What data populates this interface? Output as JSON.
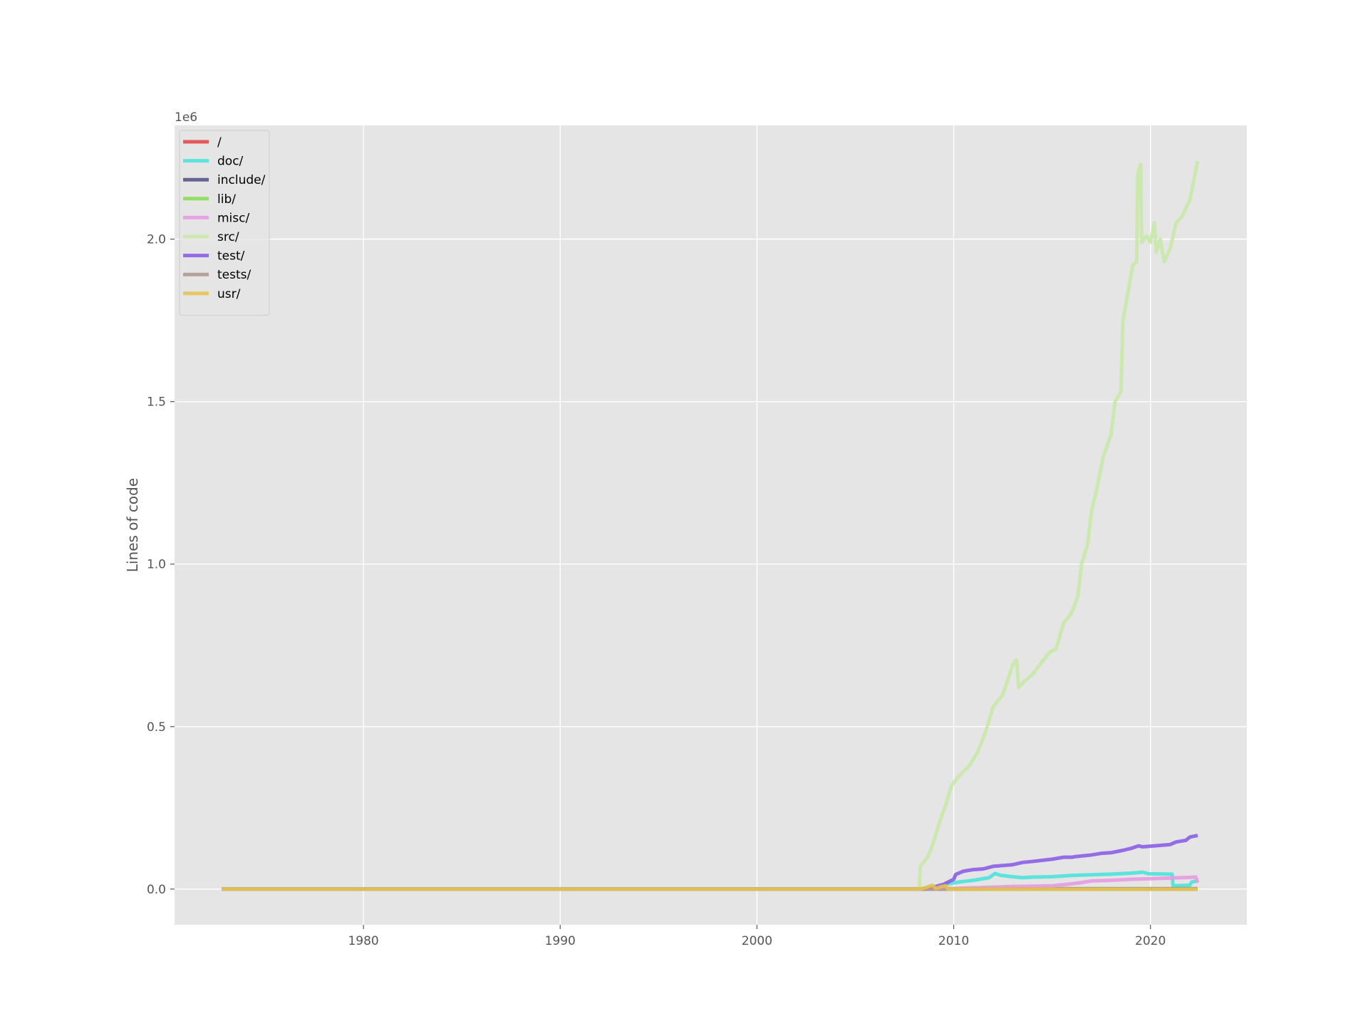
{
  "chart_data": {
    "type": "line",
    "title": "",
    "xlabel": "",
    "ylabel": "Lines of code",
    "y_offset_text": "1e6",
    "xlim": [
      1970.4,
      2024.9
    ],
    "ylim": [
      -110000,
      2350000
    ],
    "xticks": [
      1980,
      1990,
      2000,
      2010,
      2020
    ],
    "yticks": [
      0,
      500000,
      1000000,
      1500000,
      2000000
    ],
    "ytick_labels": [
      "0.0",
      "0.5",
      "1.0",
      "1.5",
      "2.0"
    ],
    "grid": true,
    "background": "#e5e5e5",
    "legend_position": "upper-left",
    "series": [
      {
        "name": "/",
        "color": "#e24a4a",
        "points": [
          [
            1972.8,
            0
          ],
          [
            2022.4,
            0
          ]
        ]
      },
      {
        "name": "doc/",
        "color": "#4ee2dc",
        "points": [
          [
            1972.8,
            0
          ],
          [
            2009.5,
            0
          ],
          [
            2009.6,
            15000
          ],
          [
            2010.3,
            22000
          ],
          [
            2011.0,
            27000
          ],
          [
            2011.8,
            35000
          ],
          [
            2012.1,
            48000
          ],
          [
            2012.4,
            42000
          ],
          [
            2013.0,
            38000
          ],
          [
            2013.5,
            35000
          ],
          [
            2014.0,
            37000
          ],
          [
            2015.0,
            38000
          ],
          [
            2016.0,
            42000
          ],
          [
            2017.0,
            44000
          ],
          [
            2018.0,
            46000
          ],
          [
            2019.0,
            49000
          ],
          [
            2019.6,
            52000
          ],
          [
            2019.9,
            47000
          ],
          [
            2021.1,
            46000
          ],
          [
            2021.15,
            10000
          ],
          [
            2022.0,
            12000
          ],
          [
            2022.1,
            22000
          ],
          [
            2022.4,
            25000
          ]
        ]
      },
      {
        "name": "include/",
        "color": "#555588",
        "points": [
          [
            1972.8,
            0
          ],
          [
            2008.2,
            0
          ],
          [
            2009.0,
            2000
          ],
          [
            2009.3,
            1000
          ],
          [
            2022.4,
            1000
          ]
        ]
      },
      {
        "name": "lib/",
        "color": "#88dd55",
        "points": [
          [
            1972.8,
            0
          ],
          [
            2022.4,
            0
          ]
        ]
      },
      {
        "name": "misc/",
        "color": "#e59be2",
        "points": [
          [
            1972.8,
            0
          ],
          [
            2009.6,
            0
          ],
          [
            2010.5,
            3000
          ],
          [
            2012.0,
            6000
          ],
          [
            2013.0,
            8000
          ],
          [
            2014.0,
            9000
          ],
          [
            2015.0,
            10000
          ],
          [
            2015.8,
            15000
          ],
          [
            2016.5,
            20000
          ],
          [
            2017.0,
            25000
          ],
          [
            2018.0,
            27000
          ],
          [
            2019.0,
            30000
          ],
          [
            2020.0,
            32000
          ],
          [
            2021.0,
            34000
          ],
          [
            2022.0,
            36000
          ],
          [
            2022.3,
            37000
          ],
          [
            2022.4,
            20000
          ]
        ]
      },
      {
        "name": "src/",
        "color": "#c8e8a8",
        "points": [
          [
            1972.8,
            0
          ],
          [
            2008.1,
            0
          ],
          [
            2008.25,
            5000
          ],
          [
            2008.3,
            70000
          ],
          [
            2008.7,
            100000
          ],
          [
            2009.0,
            150000
          ],
          [
            2009.3,
            210000
          ],
          [
            2009.6,
            260000
          ],
          [
            2009.9,
            320000
          ],
          [
            2010.3,
            350000
          ],
          [
            2010.8,
            380000
          ],
          [
            2011.2,
            420000
          ],
          [
            2011.6,
            480000
          ],
          [
            2012.0,
            560000
          ],
          [
            2012.5,
            600000
          ],
          [
            2013.0,
            690000
          ],
          [
            2013.2,
            705000
          ],
          [
            2013.3,
            620000
          ],
          [
            2013.6,
            640000
          ],
          [
            2014.0,
            660000
          ],
          [
            2014.5,
            700000
          ],
          [
            2014.9,
            730000
          ],
          [
            2015.2,
            740000
          ],
          [
            2015.6,
            820000
          ],
          [
            2016.0,
            850000
          ],
          [
            2016.3,
            900000
          ],
          [
            2016.5,
            1000000
          ],
          [
            2016.8,
            1060000
          ],
          [
            2017.0,
            1160000
          ],
          [
            2017.3,
            1240000
          ],
          [
            2017.6,
            1330000
          ],
          [
            2018.0,
            1400000
          ],
          [
            2018.2,
            1500000
          ],
          [
            2018.5,
            1530000
          ],
          [
            2018.6,
            1750000
          ],
          [
            2018.9,
            1850000
          ],
          [
            2019.1,
            1920000
          ],
          [
            2019.3,
            1930000
          ],
          [
            2019.35,
            2200000
          ],
          [
            2019.5,
            2230000
          ],
          [
            2019.55,
            1990000
          ],
          [
            2019.8,
            2010000
          ],
          [
            2020.0,
            1990000
          ],
          [
            2020.2,
            2050000
          ],
          [
            2020.3,
            1960000
          ],
          [
            2020.5,
            2000000
          ],
          [
            2020.7,
            1930000
          ],
          [
            2021.0,
            1970000
          ],
          [
            2021.3,
            2050000
          ],
          [
            2021.6,
            2070000
          ],
          [
            2022.0,
            2120000
          ],
          [
            2022.2,
            2180000
          ],
          [
            2022.4,
            2240000
          ]
        ]
      },
      {
        "name": "test/",
        "color": "#8a5ee5",
        "points": [
          [
            1972.8,
            0
          ],
          [
            2008.6,
            0
          ],
          [
            2009.5,
            15000
          ],
          [
            2010.0,
            30000
          ],
          [
            2010.1,
            45000
          ],
          [
            2010.5,
            55000
          ],
          [
            2011.0,
            60000
          ],
          [
            2011.5,
            62000
          ],
          [
            2012.0,
            70000
          ],
          [
            2013.0,
            75000
          ],
          [
            2013.5,
            82000
          ],
          [
            2014.0,
            85000
          ],
          [
            2015.0,
            92000
          ],
          [
            2015.6,
            98000
          ],
          [
            2016.0,
            98000
          ],
          [
            2016.2,
            100000
          ],
          [
            2017.0,
            105000
          ],
          [
            2017.5,
            110000
          ],
          [
            2018.0,
            112000
          ],
          [
            2018.5,
            118000
          ],
          [
            2019.0,
            125000
          ],
          [
            2019.4,
            133000
          ],
          [
            2019.6,
            130000
          ],
          [
            2020.0,
            132000
          ],
          [
            2021.0,
            137000
          ],
          [
            2021.3,
            145000
          ],
          [
            2021.8,
            150000
          ],
          [
            2022.0,
            160000
          ],
          [
            2022.4,
            165000
          ]
        ]
      },
      {
        "name": "tests/",
        "color": "#b09a94",
        "points": [
          [
            1972.8,
            0
          ],
          [
            2022.4,
            0
          ]
        ]
      },
      {
        "name": "usr/",
        "color": "#e6c24f",
        "points": [
          [
            1972.8,
            0
          ],
          [
            2008.3,
            0
          ],
          [
            2008.6,
            5000
          ],
          [
            2008.9,
            12000
          ],
          [
            2009.1,
            2000
          ],
          [
            2009.4,
            8000
          ],
          [
            2009.6,
            10000
          ],
          [
            2009.7,
            0
          ],
          [
            2022.4,
            0
          ]
        ]
      }
    ]
  }
}
